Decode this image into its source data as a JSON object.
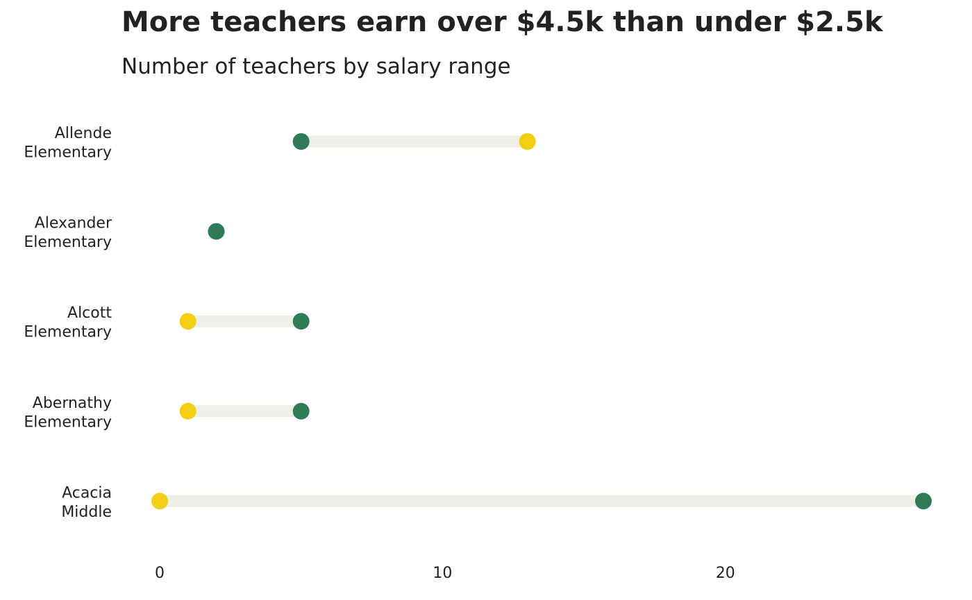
{
  "title": "More teachers earn over $4.5k than under $2.5k",
  "subtitle": "Number of teachers by salary range",
  "colors": {
    "low": "#F2CF12",
    "high": "#2F7A58",
    "connector": "#EFEFEA",
    "text": "#222222",
    "background": "#FFFFFF"
  },
  "chart_data": {
    "type": "dumbbell",
    "title": "More teachers earn over $4.5k than under $2.5k",
    "subtitle": "Number of teachers by salary range",
    "xlabel": "",
    "ylabel": "",
    "xlim": [
      -0.3,
      27.4
    ],
    "xticks": [
      0,
      10,
      20
    ],
    "grid": false,
    "legend": "none",
    "categories": [
      [
        "Allende",
        "Elementary"
      ],
      [
        "Alexander",
        "Elementary"
      ],
      [
        "Alcott",
        "Elementary"
      ],
      [
        "Abernathy",
        "Elementary"
      ],
      [
        "Acacia",
        "Middle"
      ]
    ],
    "series": [
      {
        "key": "low",
        "color": "#F2CF12",
        "values": [
          13,
          null,
          1,
          1,
          0
        ]
      },
      {
        "key": "high",
        "color": "#2F7A58",
        "values": [
          5,
          2,
          5,
          5,
          27
        ]
      }
    ]
  }
}
